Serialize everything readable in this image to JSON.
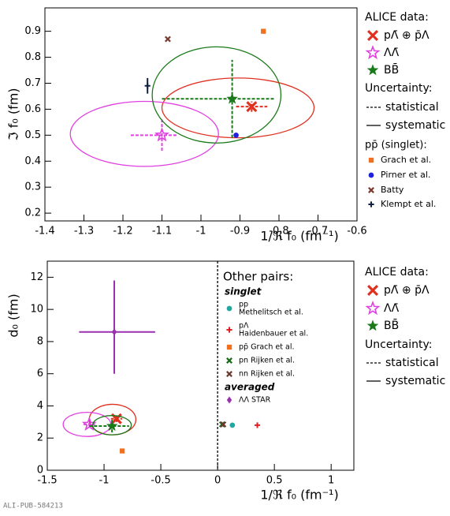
{
  "chart_data": [
    {
      "type": "scatter",
      "x_label": "1/ℜ f₀ (fm⁻¹)",
      "y_label": "ℑ f₀ (fm)",
      "xlim": [
        -1.4,
        -0.6
      ],
      "ylim": [
        0.17,
        0.99
      ],
      "xticks": [
        -1.4,
        -1.3,
        -1.2,
        -1.1,
        -1,
        -0.9,
        -0.8,
        -0.7,
        -0.6
      ],
      "yticks": [
        0.2,
        0.3,
        0.4,
        0.5,
        0.6,
        0.7,
        0.8,
        0.9
      ],
      "legend_title": "ALICE data:",
      "uncertainty_title": "Uncertainty:",
      "uncertainty_labels": [
        "statistical",
        "systematic"
      ],
      "reference_title": "pp̄ (singlet):",
      "series": [
        {
          "name": "pΛ̄ ⊕ p̄Λ",
          "color": "#e03020",
          "marker": "bigx",
          "x": [
            -0.87
          ],
          "values": [
            0.61
          ],
          "xerr": [
            [
              0.04,
              0.04
            ]
          ],
          "yerr": [
            [
              0.02,
              0.02
            ]
          ],
          "ellipse": [
            {
              "cx": -0.905,
              "cy": 0.605,
              "rx": 0.195,
              "ry": 0.115
            }
          ]
        },
        {
          "name": "ΛΛ̄",
          "color": "#e040e0",
          "marker": "openstar",
          "x": [
            -1.1
          ],
          "values": [
            0.5
          ],
          "xerr": [
            [
              0.08,
              0.04
            ]
          ],
          "yerr": [
            [
              0.06,
              0.06
            ]
          ],
          "ellipse": [
            {
              "cx": -1.145,
              "cy": 0.505,
              "rx": 0.19,
              "ry": 0.125
            }
          ]
        },
        {
          "name": "BB̄",
          "color": "#1a7a1a",
          "marker": "star",
          "x": [
            -0.92
          ],
          "values": [
            0.64
          ],
          "xerr": [
            [
              0.18,
              0.11
            ]
          ],
          "yerr": [
            [
              0.15,
              0.15
            ]
          ],
          "ellipse": [
            {
              "cx": -0.96,
              "cy": 0.655,
              "rx": 0.165,
              "ry": 0.185
            }
          ]
        },
        {
          "name": "Grach et al.",
          "group": "reference",
          "color": "#f07020",
          "marker": "square",
          "x": [
            -0.84
          ],
          "values": [
            0.9
          ]
        },
        {
          "name": "Pirner et al.",
          "group": "reference",
          "color": "#2020e0",
          "marker": "circle",
          "x": [
            -0.91
          ],
          "values": [
            0.5
          ]
        },
        {
          "name": "Batty",
          "group": "reference",
          "color": "#7a3a30",
          "marker": "xmark",
          "x": [
            -1.085
          ],
          "values": [
            0.87
          ]
        },
        {
          "name": "Klempt et al.",
          "group": "reference",
          "color": "#102040",
          "marker": "plus",
          "x": [
            -1.137
          ],
          "values": [
            0.69
          ],
          "yerr": [
            [
              0.03,
              0.03
            ]
          ]
        }
      ]
    },
    {
      "type": "scatter",
      "x_label": "1/ℜ f₀ (fm⁻¹)",
      "y_label": "d₀ (fm)",
      "xlim": [
        -1.5,
        1.2
      ],
      "ylim": [
        0,
        13
      ],
      "xticks": [
        -1.5,
        -1,
        -0.5,
        0,
        0.5,
        1
      ],
      "yticks": [
        0,
        2,
        4,
        6,
        8,
        10,
        12
      ],
      "vline": 0,
      "legend_title": "ALICE data:",
      "uncertainty_title": "Uncertainty:",
      "uncertainty_labels": [
        "statistical",
        "systematic"
      ],
      "reference_title": "Other pairs:",
      "groups": [
        "singlet",
        "averaged"
      ],
      "series": [
        {
          "name": "pΛ̄ ⊕ p̄Λ",
          "color": "#e03020",
          "marker": "bigx",
          "x": [
            -0.89
          ],
          "values": [
            3.2
          ],
          "xerr": [
            [
              0.05,
              0.05
            ]
          ],
          "yerr": [
            [
              0.2,
              0.2
            ]
          ],
          "ellipse": [
            {
              "cx": -0.925,
              "cy": 3.15,
              "rx": 0.205,
              "ry": 0.95
            }
          ]
        },
        {
          "name": "ΛΛ̄",
          "color": "#e040e0",
          "marker": "openstar",
          "x": [
            -1.13
          ],
          "values": [
            2.85
          ],
          "xerr": [
            [
              0.05,
              0.05
            ]
          ],
          "yerr": [
            [
              0.1,
              0.1
            ]
          ],
          "ellipse": [
            {
              "cx": -1.15,
              "cy": 2.85,
              "rx": 0.21,
              "ry": 0.75
            }
          ]
        },
        {
          "name": "BB̄",
          "color": "#1a7a1a",
          "marker": "star",
          "x": [
            -0.93
          ],
          "values": [
            2.75
          ],
          "xerr": [
            [
              0.2,
              0.15
            ]
          ],
          "yerr": [
            [
              0.4,
              0.4
            ]
          ],
          "ellipse": [
            {
              "cx": -0.93,
              "cy": 2.8,
              "rx": 0.17,
              "ry": 0.6
            }
          ]
        },
        {
          "name": "pp",
          "note": "Methelitsch et al.",
          "group": "singlet",
          "color": "#20a8a0",
          "marker": "circle",
          "x": [
            0.13
          ],
          "values": [
            2.8
          ]
        },
        {
          "name": "pΛ",
          "note": "Haidenbauer et al.",
          "group": "singlet",
          "color": "#e02020",
          "marker": "plus",
          "x": [
            0.35
          ],
          "values": [
            2.8
          ]
        },
        {
          "name": "pp̄ Grach et al.",
          "group": "singlet",
          "color": "#f07020",
          "marker": "square",
          "x": [
            -0.84
          ],
          "values": [
            1.2
          ]
        },
        {
          "name": "pn Rijken et al.",
          "group": "singlet",
          "color": "#1a6a1a",
          "marker": "xmark",
          "x": [
            0.04
          ],
          "values": [
            2.85
          ]
        },
        {
          "name": "nn Rijken et al.",
          "group": "singlet",
          "color": "#6a3a30",
          "marker": "xmark",
          "x": [
            0.05
          ],
          "values": [
            2.85
          ]
        },
        {
          "name": "ΛΛ STAR",
          "group": "averaged",
          "color": "#9a30b0",
          "marker": "diamond",
          "x": [
            -0.91
          ],
          "values": [
            8.6
          ],
          "xerr": [
            [
              0.31,
              0.36
            ]
          ],
          "yerr": [
            [
              2.6,
              3.2
            ]
          ]
        }
      ]
    }
  ],
  "footer": "ALI-PUB-584213"
}
